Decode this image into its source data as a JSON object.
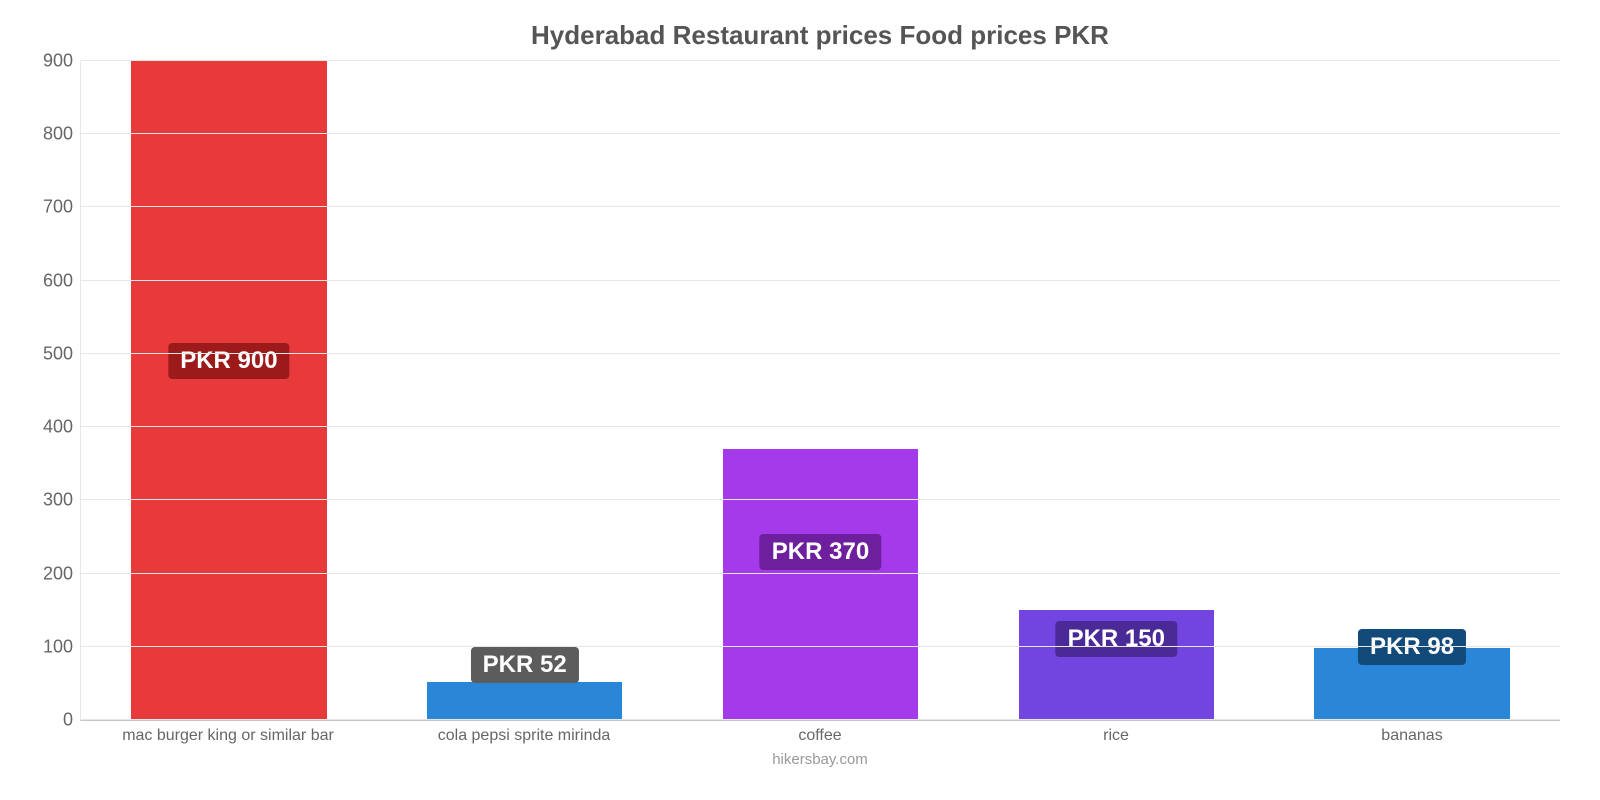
{
  "chart": {
    "type": "bar",
    "title": "Hyderabad Restaurant prices Food prices PKR",
    "title_fontsize": 26,
    "title_color": "#555555",
    "background_color": "#ffffff",
    "grid_color": "#e6e6e6",
    "axis_color": "#c4c4c4",
    "tick_color": "#666666",
    "tick_fontsize": 18,
    "xlabel_fontsize": 16,
    "ylim_min": 0,
    "ylim_max": 900,
    "ytick_step": 100,
    "yticks": [
      0,
      100,
      200,
      300,
      400,
      500,
      600,
      700,
      800,
      900
    ],
    "bar_width_pct": 66,
    "categories": [
      "mac burger king or similar bar",
      "cola pepsi sprite mirinda",
      "coffee",
      "rice",
      "bananas"
    ],
    "values": [
      900,
      52,
      370,
      150,
      98
    ],
    "value_labels": [
      "PKR 900",
      "PKR 52",
      "PKR 370",
      "PKR 150",
      "PKR 98"
    ],
    "bar_colors": [
      "#e83a3a",
      "#2a87d8",
      "#a43aea",
      "#7345e0",
      "#2a87d8"
    ],
    "label_bg_colors": [
      "#9c1a19",
      "#5c5c5c",
      "#6d1f9e",
      "#4a2a96",
      "#124a7a"
    ],
    "label_y_positions": [
      490,
      75,
      230,
      110,
      100
    ],
    "label_fontsize": 24,
    "attribution": "hikersbay.com",
    "attribution_fontsize": 15,
    "attribution_color": "#999999"
  }
}
